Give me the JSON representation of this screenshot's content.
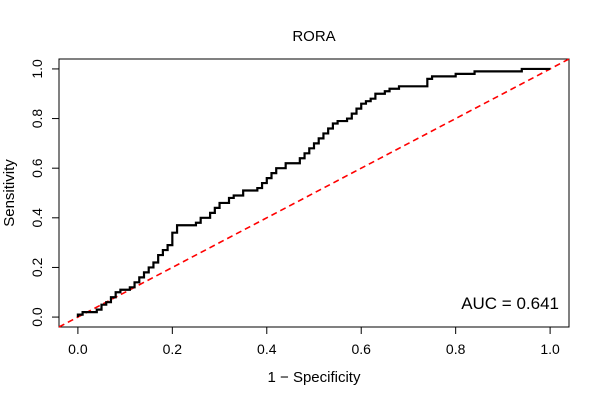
{
  "chart_data": {
    "type": "line",
    "title": "RORA",
    "xlabel": "1 − Specificity",
    "ylabel": "Sensitivity",
    "xlim": [
      -0.04,
      1.04
    ],
    "ylim": [
      -0.04,
      1.04
    ],
    "xticks": [
      0.0,
      0.2,
      0.4,
      0.6,
      0.8,
      1.0
    ],
    "yticks": [
      0.0,
      0.2,
      0.4,
      0.6,
      0.8,
      1.0
    ],
    "xtick_labels": [
      "0.0",
      "0.2",
      "0.4",
      "0.6",
      "0.8",
      "1.0"
    ],
    "ytick_labels": [
      "0.0",
      "0.2",
      "0.4",
      "0.6",
      "0.8",
      "1.0"
    ],
    "grid": false,
    "annotation": "AUC = 0.641",
    "annotation_position": "bottom-right",
    "reference_line": {
      "from": [
        0,
        0
      ],
      "to": [
        1,
        1
      ],
      "color": "#ff0000",
      "style": "dashed"
    },
    "series": [
      {
        "color": "#000000",
        "points": [
          [
            0.0,
            0.0
          ],
          [
            0.0,
            0.01
          ],
          [
            0.01,
            0.01
          ],
          [
            0.01,
            0.02
          ],
          [
            0.04,
            0.02
          ],
          [
            0.04,
            0.03
          ],
          [
            0.05,
            0.03
          ],
          [
            0.05,
            0.05
          ],
          [
            0.06,
            0.05
          ],
          [
            0.06,
            0.06
          ],
          [
            0.07,
            0.06
          ],
          [
            0.07,
            0.08
          ],
          [
            0.08,
            0.08
          ],
          [
            0.08,
            0.1
          ],
          [
            0.09,
            0.1
          ],
          [
            0.09,
            0.11
          ],
          [
            0.11,
            0.11
          ],
          [
            0.11,
            0.12
          ],
          [
            0.12,
            0.12
          ],
          [
            0.12,
            0.14
          ],
          [
            0.13,
            0.14
          ],
          [
            0.13,
            0.16
          ],
          [
            0.14,
            0.16
          ],
          [
            0.14,
            0.18
          ],
          [
            0.15,
            0.18
          ],
          [
            0.15,
            0.2
          ],
          [
            0.16,
            0.2
          ],
          [
            0.16,
            0.22
          ],
          [
            0.17,
            0.22
          ],
          [
            0.17,
            0.25
          ],
          [
            0.18,
            0.25
          ],
          [
            0.18,
            0.27
          ],
          [
            0.19,
            0.27
          ],
          [
            0.19,
            0.29
          ],
          [
            0.2,
            0.29
          ],
          [
            0.2,
            0.34
          ],
          [
            0.21,
            0.34
          ],
          [
            0.21,
            0.37
          ],
          [
            0.25,
            0.37
          ],
          [
            0.25,
            0.38
          ],
          [
            0.26,
            0.38
          ],
          [
            0.26,
            0.4
          ],
          [
            0.28,
            0.4
          ],
          [
            0.28,
            0.42
          ],
          [
            0.29,
            0.42
          ],
          [
            0.29,
            0.44
          ],
          [
            0.3,
            0.44
          ],
          [
            0.3,
            0.46
          ],
          [
            0.32,
            0.46
          ],
          [
            0.32,
            0.48
          ],
          [
            0.33,
            0.48
          ],
          [
            0.33,
            0.49
          ],
          [
            0.35,
            0.49
          ],
          [
            0.35,
            0.51
          ],
          [
            0.38,
            0.51
          ],
          [
            0.38,
            0.52
          ],
          [
            0.39,
            0.52
          ],
          [
            0.39,
            0.54
          ],
          [
            0.4,
            0.54
          ],
          [
            0.4,
            0.56
          ],
          [
            0.41,
            0.56
          ],
          [
            0.41,
            0.58
          ],
          [
            0.42,
            0.58
          ],
          [
            0.42,
            0.6
          ],
          [
            0.44,
            0.6
          ],
          [
            0.44,
            0.62
          ],
          [
            0.47,
            0.62
          ],
          [
            0.47,
            0.64
          ],
          [
            0.48,
            0.64
          ],
          [
            0.48,
            0.66
          ],
          [
            0.49,
            0.66
          ],
          [
            0.49,
            0.68
          ],
          [
            0.5,
            0.68
          ],
          [
            0.5,
            0.7
          ],
          [
            0.51,
            0.7
          ],
          [
            0.51,
            0.72
          ],
          [
            0.52,
            0.72
          ],
          [
            0.52,
            0.74
          ],
          [
            0.53,
            0.74
          ],
          [
            0.53,
            0.76
          ],
          [
            0.54,
            0.76
          ],
          [
            0.54,
            0.78
          ],
          [
            0.55,
            0.78
          ],
          [
            0.55,
            0.79
          ],
          [
            0.57,
            0.79
          ],
          [
            0.57,
            0.8
          ],
          [
            0.58,
            0.8
          ],
          [
            0.58,
            0.82
          ],
          [
            0.59,
            0.82
          ],
          [
            0.59,
            0.84
          ],
          [
            0.6,
            0.84
          ],
          [
            0.6,
            0.86
          ],
          [
            0.61,
            0.86
          ],
          [
            0.61,
            0.87
          ],
          [
            0.62,
            0.87
          ],
          [
            0.62,
            0.88
          ],
          [
            0.63,
            0.88
          ],
          [
            0.63,
            0.9
          ],
          [
            0.65,
            0.9
          ],
          [
            0.65,
            0.91
          ],
          [
            0.66,
            0.91
          ],
          [
            0.66,
            0.92
          ],
          [
            0.68,
            0.92
          ],
          [
            0.68,
            0.93
          ],
          [
            0.74,
            0.93
          ],
          [
            0.74,
            0.96
          ],
          [
            0.75,
            0.96
          ],
          [
            0.75,
            0.97
          ],
          [
            0.8,
            0.97
          ],
          [
            0.8,
            0.98
          ],
          [
            0.84,
            0.98
          ],
          [
            0.84,
            0.99
          ],
          [
            0.94,
            0.99
          ],
          [
            0.94,
            1.0
          ],
          [
            1.0,
            1.0
          ]
        ]
      }
    ]
  }
}
